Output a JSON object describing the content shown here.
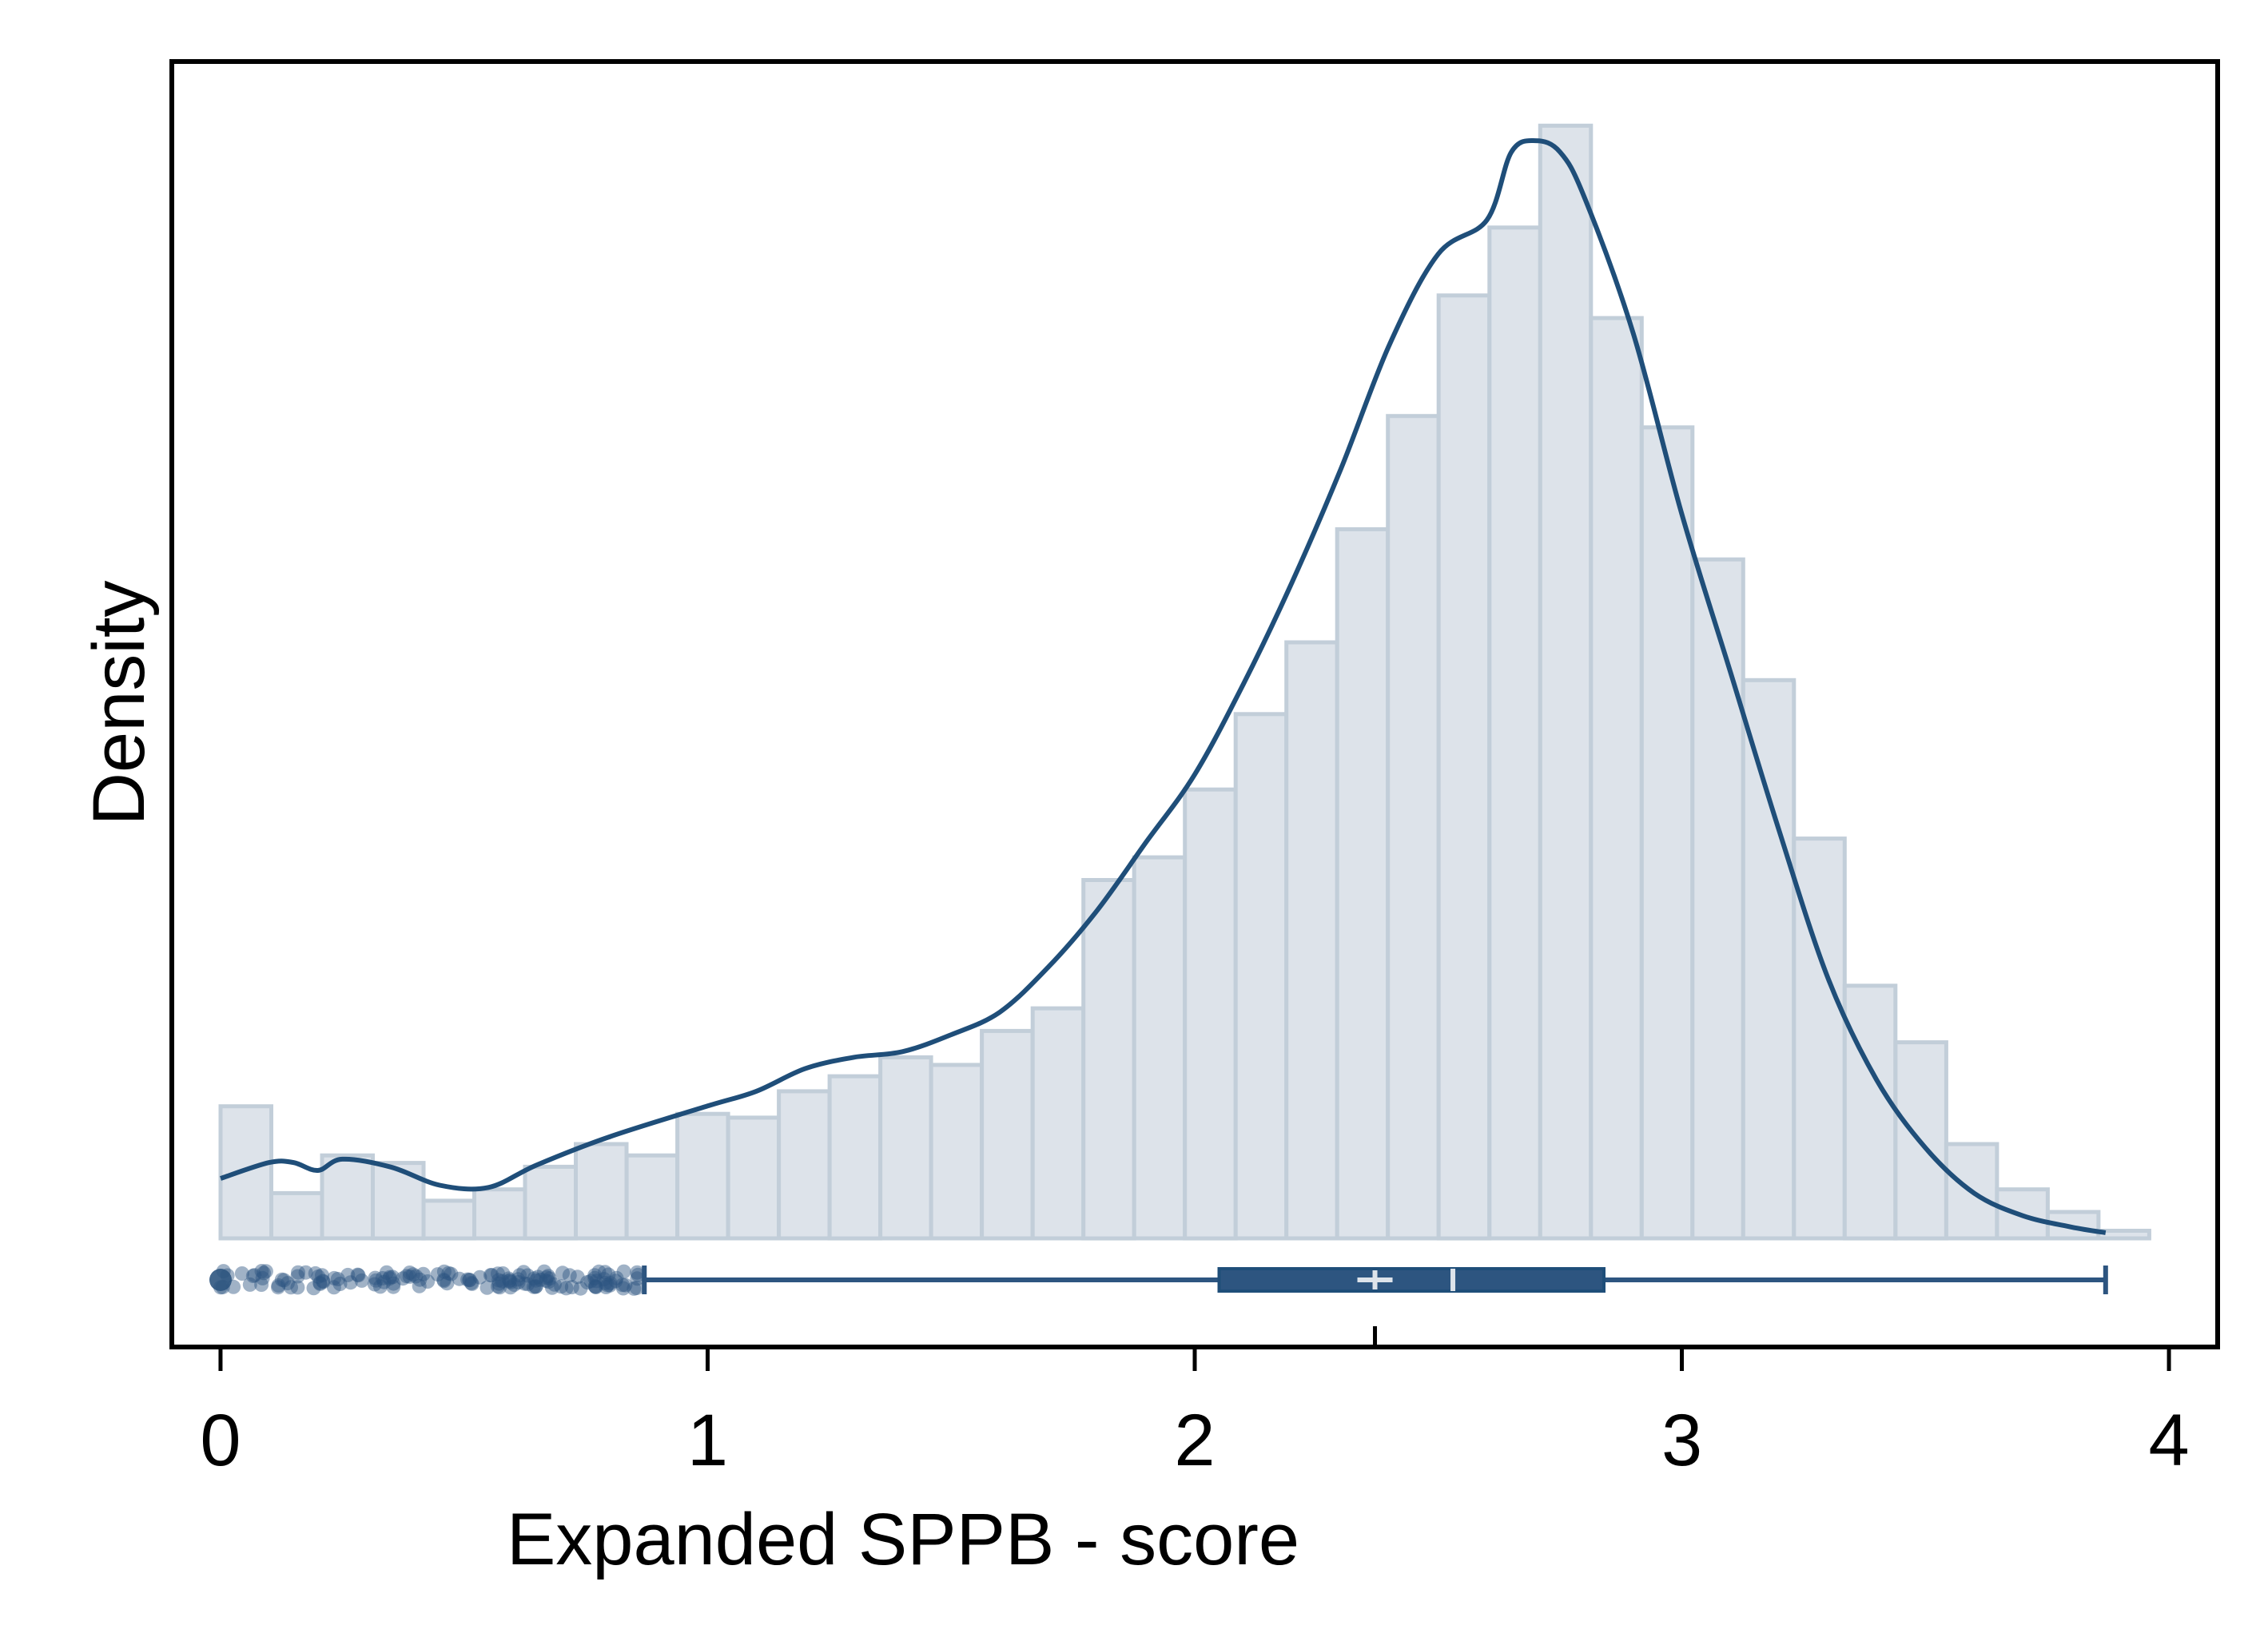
{
  "chart_data": {
    "type": "histogram",
    "xlabel": "Expanded SPPB - score",
    "ylabel": "Density",
    "xlim": [
      -0.1,
      4.1
    ],
    "ylim": [
      -0.096,
      1.04
    ],
    "x_ticks": [
      0,
      1,
      2,
      3,
      4
    ],
    "x_tick_labels": [
      "0",
      "1",
      "2",
      "3",
      "4"
    ],
    "y_ticks_shown": false,
    "grid": false,
    "legend": "none",
    "colors": {
      "bar_fill": "#dde3ea",
      "bar_edge": "#c2ced9",
      "density_line": "#1f4e79",
      "boxplot": "#2d5580",
      "box_marker": "#dde3ea",
      "axis": "#000000"
    },
    "histogram": {
      "bin_width": 0.1042,
      "bin_start": 0,
      "densities": [
        0.1167,
        0.04,
        0.0733,
        0.0667,
        0.0333,
        0.0433,
        0.0633,
        0.0833,
        0.0733,
        0.11,
        0.1067,
        0.13,
        0.1433,
        0.16,
        0.1533,
        0.1833,
        0.2033,
        0.3167,
        0.3367,
        0.3967,
        0.4633,
        0.5267,
        0.6267,
        0.7267,
        0.8333,
        0.8933,
        0.9833,
        0.8133,
        0.7167,
        0.6,
        0.4933,
        0.3533,
        0.2233,
        0.1733,
        0.0833,
        0.0433,
        0.0233,
        0.0067
      ]
    },
    "density_curve": {
      "x": [
        0,
        0.1,
        0.15,
        0.2,
        0.25,
        0.35,
        0.45,
        0.55,
        0.65,
        0.8,
        1.0,
        1.1,
        1.2,
        1.3,
        1.4,
        1.5,
        1.6,
        1.7,
        1.8,
        1.9,
        2.0,
        2.1,
        2.2,
        2.3,
        2.4,
        2.5,
        2.6,
        2.65,
        2.7,
        2.75,
        2.8,
        2.9,
        3.0,
        3.1,
        3.2,
        3.3,
        3.4,
        3.5,
        3.6,
        3.7,
        3.8,
        3.87
      ],
      "y": [
        0.053,
        0.067,
        0.067,
        0.06,
        0.07,
        0.063,
        0.047,
        0.045,
        0.065,
        0.09,
        0.117,
        0.13,
        0.15,
        0.16,
        0.165,
        0.18,
        0.2,
        0.24,
        0.29,
        0.35,
        0.41,
        0.49,
        0.58,
        0.68,
        0.79,
        0.87,
        0.9,
        0.96,
        0.97,
        0.96,
        0.92,
        0.8,
        0.64,
        0.5,
        0.36,
        0.23,
        0.14,
        0.08,
        0.04,
        0.02,
        0.01,
        0.005
      ]
    },
    "boxplot": {
      "whisker_low": 0.87,
      "q1": 2.05,
      "median": 2.53,
      "mean": 2.37,
      "q3": 2.84,
      "whisker_high": 3.87,
      "outlier_range": [
        0,
        0.86
      ]
    }
  }
}
